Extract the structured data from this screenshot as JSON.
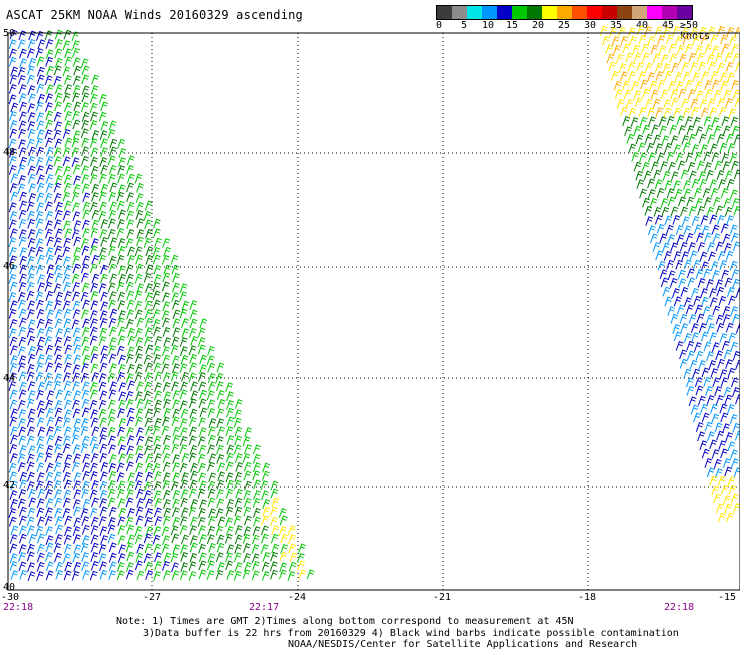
{
  "title": "ASCAT 25KM NOAA Winds 20160329 ascending",
  "legend": {
    "colors": [
      "#3c3c3c",
      "#8c8c8c",
      "#00e6e6",
      "#0096ff",
      "#0000c8",
      "#00c800",
      "#007800",
      "#ffff00",
      "#ffaa00",
      "#ff5000",
      "#ff0000",
      "#c80000",
      "#8b4513",
      "#d2a679",
      "#ff00ff",
      "#b400b4",
      "#6a00a0"
    ],
    "labels": [
      "0",
      "5",
      "10",
      "15",
      "20",
      "25",
      "30",
      "35",
      "40",
      "45",
      "≥50 knots"
    ]
  },
  "axes": {
    "x_labels": [
      "-30",
      "-27",
      "-24",
      "-21",
      "-18",
      "-15"
    ],
    "y_labels": [
      "50",
      "48",
      "46",
      "44",
      "42",
      "40"
    ],
    "time_labels": [
      "22:18",
      "22:17",
      "22:18"
    ]
  },
  "notes": {
    "line1": "Note: 1) Times are GMT 2)Times along bottom correspond to measurement at 45N",
    "line2": "3)Data buffer is 22 hrs from 20160329 4) Black wind barbs indicate possible contamination",
    "line3": "NOAA/NESDIS/Center for Satellite Applications and Research"
  }
}
